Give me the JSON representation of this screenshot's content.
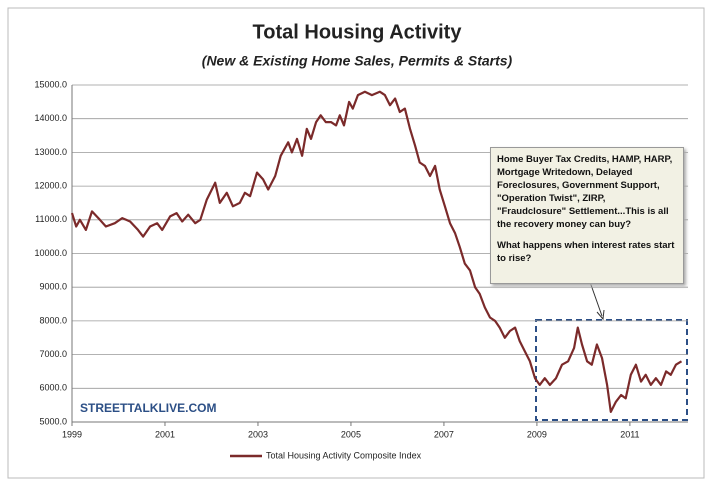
{
  "chart_data": {
    "type": "line",
    "title": "Total Housing Activity",
    "subtitle": "(New & Existing Home Sales, Permits & Starts)",
    "watermark": "STREETTALKLIVE.COM",
    "annotation": [
      "Home Buyer Tax Credits, HAMP, HARP, Mortgage Writedown, Delayed Foreclosures, Government Support, \"Operation Twist\", ZIRP, \"Fraudclosure\" Settlement...This is all the recovery money can buy?",
      "What happens when interest rates start to rise?"
    ],
    "x": [
      1999.0,
      1999.09,
      1999.17,
      1999.3,
      1999.43,
      1999.6,
      1999.73,
      1999.92,
      2000.08,
      2000.25,
      2000.42,
      2000.53,
      2000.68,
      2000.83,
      2000.94,
      2001.11,
      2001.25,
      2001.37,
      2001.5,
      2001.65,
      2001.76,
      2001.9,
      2002.08,
      2002.18,
      2002.33,
      2002.46,
      2002.61,
      2002.72,
      2002.83,
      2002.98,
      2003.11,
      2003.22,
      2003.37,
      2003.49,
      2003.65,
      2003.73,
      2003.84,
      2003.95,
      2004.05,
      2004.14,
      2004.25,
      2004.35,
      2004.46,
      2004.57,
      2004.68,
      2004.76,
      2004.85,
      2004.96,
      2005.04,
      2005.15,
      2005.3,
      2005.45,
      2005.62,
      2005.73,
      2005.84,
      2005.95,
      2006.05,
      2006.16,
      2006.27,
      2006.38,
      2006.48,
      2006.59,
      2006.7,
      2006.81,
      2006.91,
      2007.02,
      2007.13,
      2007.24,
      2007.34,
      2007.45,
      2007.56,
      2007.67,
      2007.77,
      2007.88,
      2007.99,
      2008.1,
      2008.2,
      2008.31,
      2008.42,
      2008.53,
      2008.63,
      2008.74,
      2008.85,
      2008.96,
      2009.06,
      2009.17,
      2009.28,
      2009.41,
      2009.54,
      2009.67,
      2009.8,
      2009.88,
      2009.97,
      2010.08,
      2010.18,
      2010.29,
      2010.4,
      2010.51,
      2010.59,
      2010.7,
      2010.81,
      2010.91,
      2011.02,
      2011.13,
      2011.24,
      2011.34,
      2011.45,
      2011.56,
      2011.67,
      2011.78,
      2011.88,
      2011.99,
      2012.11
    ],
    "series": [
      {
        "name": "Total Housing Activity Composite Index",
        "color": "#7b2a2a",
        "values": [
          11200,
          10800,
          11000,
          10700,
          11250,
          11000,
          10800,
          10900,
          11050,
          10950,
          10700,
          10500,
          10800,
          10900,
          10700,
          11100,
          11200,
          10950,
          11150,
          10900,
          11000,
          11600,
          12100,
          11500,
          11800,
          11400,
          11500,
          11800,
          11700,
          12400,
          12200,
          11900,
          12300,
          12900,
          13300,
          13000,
          13400,
          12900,
          13700,
          13400,
          13900,
          14100,
          13900,
          13900,
          13800,
          14100,
          13800,
          14500,
          14300,
          14700,
          14800,
          14700,
          14800,
          14700,
          14400,
          14600,
          14200,
          14300,
          13700,
          13200,
          12700,
          12600,
          12300,
          12600,
          11900,
          11400,
          10900,
          10600,
          10200,
          9700,
          9500,
          9000,
          8800,
          8400,
          8100,
          8000,
          7800,
          7500,
          7700,
          7800,
          7400,
          7100,
          6800,
          6300,
          6100,
          6300,
          6100,
          6300,
          6700,
          6800,
          7200,
          7800,
          7300,
          6800,
          6700,
          7300,
          6900,
          6100,
          5300,
          5600,
          5800,
          5700,
          6400,
          6700,
          6200,
          6400,
          6100,
          6300,
          6100,
          6500,
          6400,
          6700,
          6800
        ]
      }
    ],
    "xlim": [
      1999,
      2012.25
    ],
    "xticks": [
      1999,
      2001,
      2003,
      2005,
      2007,
      2009,
      2011
    ],
    "ylim": [
      5000,
      15000
    ],
    "yticks": [
      {
        "value": 5000,
        "label": "5000.0"
      },
      {
        "value": 6000,
        "label": "6000.0"
      },
      {
        "value": 7000,
        "label": "7000.0"
      },
      {
        "value": 8000,
        "label": "8000.0"
      },
      {
        "value": 9000,
        "label": "9000.0"
      },
      {
        "value": 10000,
        "label": "10000.0"
      },
      {
        "value": 11000,
        "label": "11000.0"
      },
      {
        "value": 12000,
        "label": "12000.0"
      },
      {
        "value": 13000,
        "label": "13000.0"
      },
      {
        "value": 14000,
        "label": "14000.0"
      },
      {
        "value": 15000,
        "label": "15000.0"
      }
    ],
    "grid": true
  }
}
